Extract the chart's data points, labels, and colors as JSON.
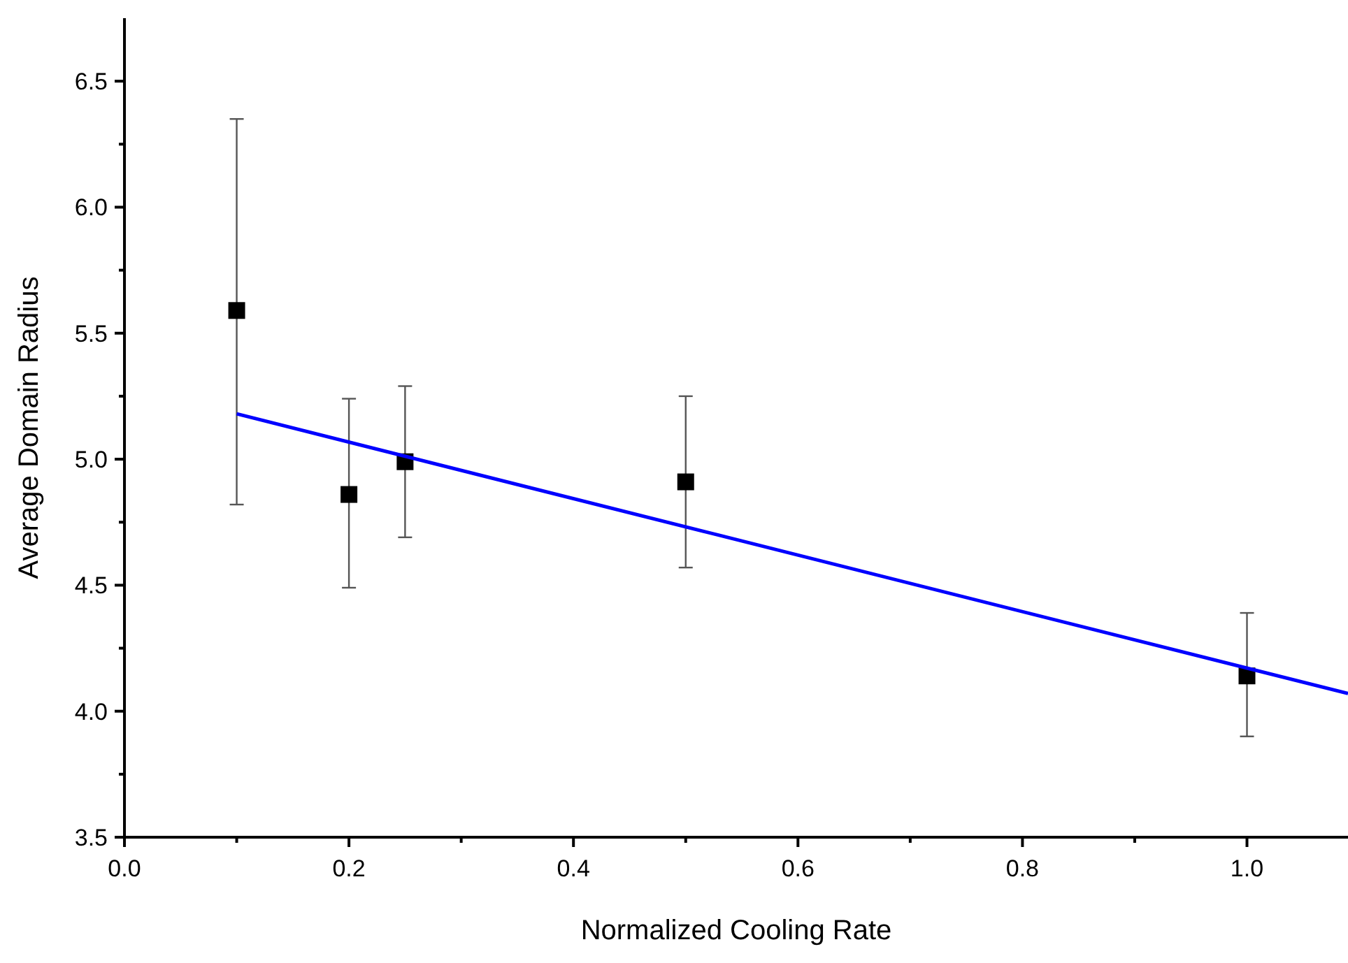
{
  "chart_data": {
    "type": "scatter",
    "xlabel": "Normalized Cooling Rate",
    "ylabel": "Average Domain Radius",
    "xlim": [
      0,
      1.09
    ],
    "ylim": [
      3.5,
      6.75
    ],
    "xticks": [
      {
        "value": 0,
        "label": "0.0"
      },
      {
        "value": 0.1,
        "label": null
      },
      0.2,
      {
        "value": 0.3,
        "label": null
      },
      0.4,
      {
        "value": 0.5,
        "label": null
      },
      0.6,
      {
        "value": 0.7,
        "label": null
      },
      0.8,
      {
        "value": 0.9,
        "label": null
      },
      {
        "value": 1,
        "label": "1.0"
      }
    ],
    "yticks": [
      3.5,
      {
        "value": 3.75,
        "label": null
      },
      {
        "value": 4,
        "label": "4.0"
      },
      {
        "value": 4.25,
        "label": null
      },
      4.5,
      {
        "value": 4.75,
        "label": null
      },
      {
        "value": 5,
        "label": "5.0"
      },
      {
        "value": 5.25,
        "label": null
      },
      5.5,
      {
        "value": 5.75,
        "label": null
      },
      {
        "value": 6,
        "label": "6.0"
      },
      {
        "value": 6.25,
        "label": null
      },
      6.5
    ],
    "grid": false,
    "marker": "square",
    "series": [
      {
        "color": "#000000",
        "x": [
          0.1,
          0.2,
          0.25,
          0.5,
          1.0
        ],
        "values": [
          5.59,
          4.86,
          4.99,
          4.91,
          4.14
        ],
        "errors": [
          [
            4.82,
            6.35
          ],
          [
            4.49,
            5.24
          ],
          [
            4.69,
            5.29
          ],
          [
            4.57,
            5.25
          ],
          [
            3.9,
            4.39
          ]
        ]
      },
      {
        "type": "line",
        "color": "#0000ff",
        "x": [
          0.1,
          1.09
        ],
        "values": [
          5.18,
          4.07
        ],
        "marker": "none",
        "line_style": "solid"
      }
    ]
  }
}
